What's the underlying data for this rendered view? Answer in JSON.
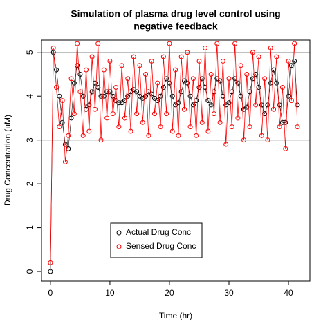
{
  "chart_data": {
    "type": "line",
    "title": [
      "Simulation of plasma drug level control using",
      "negative feedback"
    ],
    "xlabel": "Time (hr)",
    "ylabel": "Drug Concentration (uM)",
    "x": [
      0,
      0.5,
      1,
      1.5,
      2,
      2.5,
      3,
      3.5,
      4,
      4.5,
      5,
      5.5,
      6,
      6.5,
      7,
      7.5,
      8,
      8.5,
      9,
      9.5,
      10,
      10.5,
      11,
      11.5,
      12,
      12.5,
      13,
      13.5,
      14,
      14.5,
      15,
      15.5,
      16,
      16.5,
      17,
      17.5,
      18,
      18.5,
      19,
      19.5,
      20,
      20.5,
      21,
      21.5,
      22,
      22.5,
      23,
      23.5,
      24,
      24.5,
      25,
      25.5,
      26,
      26.5,
      27,
      27.5,
      28,
      28.5,
      29,
      29.5,
      30,
      30.5,
      31,
      31.5,
      32,
      32.5,
      33,
      33.5,
      34,
      34.5,
      35,
      35.5,
      36,
      36.5,
      37,
      37.5,
      38,
      38.5,
      39,
      39.5,
      40,
      40.5,
      41,
      41.5
    ],
    "series": [
      {
        "name": "Actual Drug Conc",
        "color": "#000000",
        "values": [
          0,
          5.0,
          4.6,
          4.0,
          3.4,
          2.9,
          2.8,
          3.5,
          4.3,
          4.7,
          4.5,
          4.0,
          3.7,
          3.8,
          4.1,
          4.3,
          4.2,
          4.0,
          4.0,
          4.1,
          4.1,
          4.0,
          3.9,
          3.85,
          3.85,
          3.9,
          4.0,
          4.1,
          4.15,
          4.1,
          4.0,
          3.95,
          4.0,
          4.1,
          4.05,
          3.95,
          3.9,
          4.0,
          4.2,
          4.4,
          4.3,
          4.0,
          3.8,
          3.85,
          4.1,
          4.35,
          4.3,
          4.0,
          3.8,
          3.9,
          4.2,
          4.4,
          4.2,
          3.9,
          3.8,
          4.1,
          4.4,
          4.35,
          4.0,
          3.8,
          3.85,
          4.1,
          4.4,
          4.3,
          4.0,
          3.7,
          3.75,
          4.1,
          4.4,
          4.5,
          4.2,
          3.8,
          3.6,
          3.8,
          4.3,
          4.6,
          4.3,
          3.8,
          3.4,
          3.4,
          4.0,
          4.7,
          4.8,
          3.8
        ]
      },
      {
        "name": "Sensed Drug Conc",
        "color": "#ff0000",
        "values": [
          0.2,
          5.1,
          4.2,
          3.3,
          3.9,
          2.5,
          3.1,
          4.4,
          3.6,
          5.2,
          4.1,
          3.1,
          4.6,
          3.2,
          4.9,
          3.7,
          5.2,
          3.0,
          4.6,
          3.5,
          4.8,
          3.6,
          4.2,
          3.3,
          4.7,
          3.5,
          4.4,
          3.2,
          4.9,
          3.6,
          4.7,
          3.4,
          4.5,
          3.1,
          4.8,
          3.6,
          4.3,
          3.3,
          4.9,
          3.6,
          5.2,
          3.2,
          4.6,
          3.1,
          4.9,
          3.7,
          5.0,
          3.3,
          4.4,
          3.1,
          4.8,
          3.4,
          5.1,
          3.2,
          4.5,
          3.6,
          5.2,
          3.4,
          4.8,
          2.9,
          4.4,
          3.3,
          5.2,
          3.5,
          4.7,
          3.0,
          4.5,
          3.3,
          5.0,
          3.8,
          4.9,
          3.1,
          4.4,
          3.0,
          5.1,
          3.7,
          4.9,
          3.3,
          4.2,
          2.8,
          4.8,
          3.9,
          5.2,
          3.3
        ]
      }
    ],
    "xlim": [
      -1.5,
      43.6
    ],
    "ylim": [
      -0.22,
      5.28
    ],
    "xticks": [
      0,
      10,
      20,
      30,
      40
    ],
    "yticks": [
      0,
      1,
      2,
      3,
      4,
      5
    ],
    "hlines": [
      3,
      5
    ],
    "legend": "bottom-left"
  }
}
